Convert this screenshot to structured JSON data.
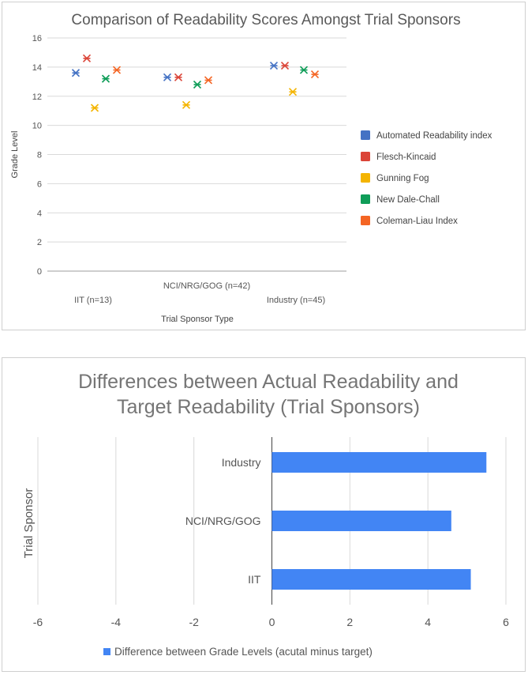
{
  "chart_data": [
    {
      "type": "scatter",
      "title": "Comparison of Readability Scores Amongst Trial Sponsors",
      "xlabel": "Trial Sponsor Type",
      "ylabel": "Grade Level",
      "categories": [
        "IIT (n=13)",
        "NCI/NRG/GOG (n=42)",
        "Industry (n=45)"
      ],
      "ylim": [
        0,
        16
      ],
      "yticks": [
        0,
        2,
        4,
        6,
        8,
        10,
        12,
        14,
        16
      ],
      "grid": "horizontal",
      "legend_position": "right",
      "series": [
        {
          "name": "Automated Readability index",
          "color": "#4472C4",
          "values": [
            13.6,
            13.3,
            14.1
          ]
        },
        {
          "name": "Flesch-Kincaid",
          "color": "#DB4437",
          "values": [
            14.6,
            13.3,
            14.1
          ]
        },
        {
          "name": "Gunning Fog",
          "color": "#F4B400",
          "values": [
            11.2,
            11.4,
            12.3
          ]
        },
        {
          "name": "New Dale-Chall",
          "color": "#0F9D58",
          "values": [
            13.2,
            12.8,
            13.8
          ]
        },
        {
          "name": "Coleman-Liau Index",
          "color": "#F46524",
          "values": [
            13.8,
            13.1,
            13.5
          ]
        }
      ]
    },
    {
      "type": "bar",
      "orientation": "horizontal",
      "title": "Differences between Actual Readability and Target Readability (Trial Sponsors)",
      "title_lines": [
        "Differences between Actual Readability and",
        "Target Readability (Trial Sponsors)"
      ],
      "ylabel": "Trial Sponsor",
      "xlabel": "",
      "categories": [
        "Industry",
        "NCI/NRG/GOG",
        "IIT"
      ],
      "xlim": [
        -6,
        6
      ],
      "xticks": [
        -6,
        -4,
        -2,
        0,
        2,
        4,
        6
      ],
      "grid": "vertical",
      "legend_position": "bottom",
      "series": [
        {
          "name": "Difference between Grade Levels (acutal minus target)",
          "color": "#4285F4",
          "values": [
            5.5,
            4.6,
            5.1
          ]
        }
      ]
    }
  ]
}
